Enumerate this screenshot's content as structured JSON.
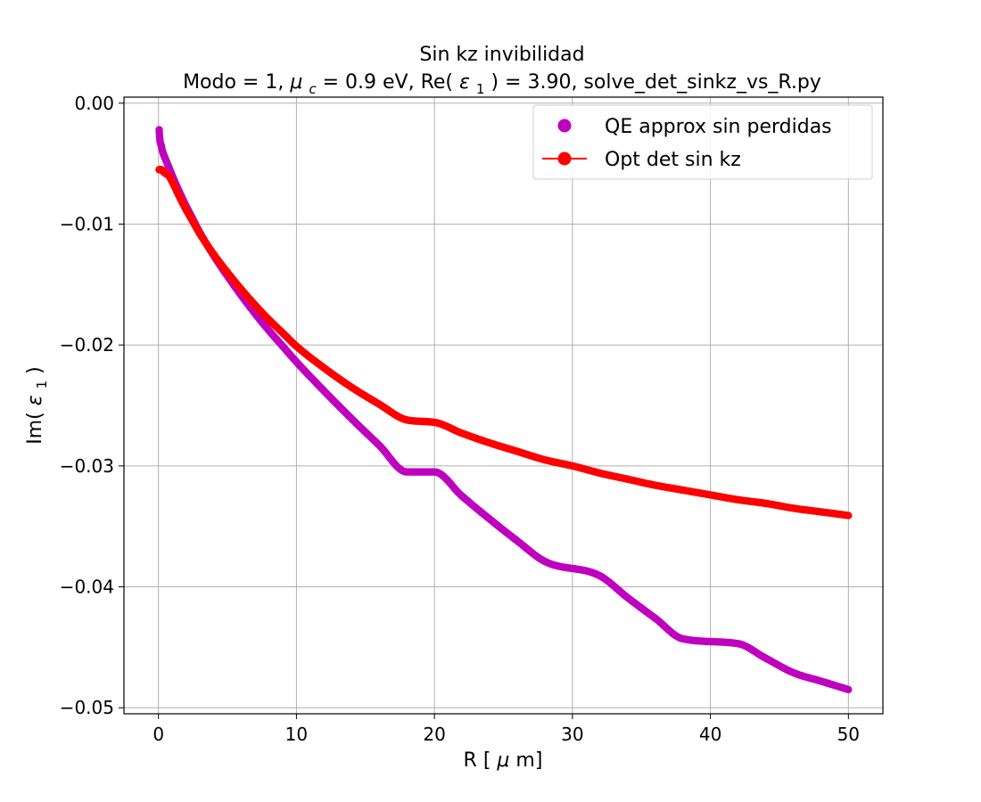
{
  "chart_data": {
    "type": "scatter",
    "title": "Sin kz invibilidad",
    "subtitle": "Modo = 1, μ_c = 0.9 eV, Re(ε_1) = 3.90, solve_det_sinkz_vs_R.py",
    "xlabel": "R [μm]",
    "ylabel": "Im(ε_1)",
    "xlim": [
      -2.5,
      52.5
    ],
    "ylim": [
      -0.0505,
      0.0005
    ],
    "xticks": [
      0,
      10,
      20,
      30,
      40,
      50
    ],
    "yticks": [
      0.0,
      -0.01,
      -0.02,
      -0.03,
      -0.04,
      -0.05
    ],
    "xtick_labels": [
      "0",
      "10",
      "20",
      "30",
      "40",
      "50"
    ],
    "ytick_labels": [
      "0.00",
      "−0.01",
      "−0.02",
      "−0.03",
      "−0.04",
      "−0.05"
    ],
    "grid": true,
    "legend_position": "top-right",
    "series": [
      {
        "name": "QE approx sin perdidas",
        "style": "markers",
        "color": "#bf00bf",
        "x": [
          0.05,
          0.1,
          0.2,
          0.3,
          0.5,
          0.75,
          1,
          1.5,
          2,
          2.5,
          3,
          4,
          5,
          6,
          7,
          8,
          9,
          10,
          12,
          14,
          16,
          18,
          20,
          22,
          24,
          26,
          28,
          30,
          32,
          34,
          36,
          38,
          40,
          42,
          44,
          46,
          48,
          50
        ],
        "y": [
          -0.0022,
          -0.003,
          -0.0035,
          -0.004,
          -0.0046,
          -0.0053,
          -0.006,
          -0.0073,
          -0.0085,
          -0.0096,
          -0.0107,
          -0.0126,
          -0.0143,
          -0.0159,
          -0.0174,
          -0.0188,
          -0.0201,
          -0.0214,
          -0.0238,
          -0.0261,
          -0.0283,
          -0.0305,
          -0.0305,
          -0.0325,
          -0.0344,
          -0.0362,
          -0.0379,
          -0.0372,
          -0.0391,
          -0.0409,
          -0.0426,
          -0.0443,
          -0.0435,
          -0.0447,
          -0.0459,
          -0.0471,
          -0.0478,
          -0.0485
        ]
      },
      {
        "name": "Opt det sin kz",
        "style": "line-markers",
        "color": "#ff0000",
        "x": [
          0.05,
          0.1,
          0.2,
          0.3,
          0.5,
          0.75,
          1,
          1.5,
          2,
          2.5,
          3,
          4,
          5,
          6,
          7,
          8,
          9,
          10,
          12,
          14,
          16,
          18,
          20,
          22,
          24,
          26,
          28,
          30,
          32,
          34,
          36,
          38,
          40,
          42,
          44,
          46,
          48,
          50
        ],
        "y": [
          -0.0055,
          -0.0055,
          -0.0055,
          -0.0056,
          -0.0058,
          -0.006,
          -0.0065,
          -0.0077,
          -0.0088,
          -0.0098,
          -0.0108,
          -0.0125,
          -0.014,
          -0.0154,
          -0.0167,
          -0.0179,
          -0.019,
          -0.0201,
          -0.0219,
          -0.0235,
          -0.0249,
          -0.0262,
          -0.0264,
          -0.0273,
          -0.0281,
          -0.0288,
          -0.0295,
          -0.03,
          -0.0306,
          -0.0311,
          -0.0316,
          -0.032,
          -0.0324,
          -0.0328,
          -0.0331,
          -0.0335,
          -0.0338,
          -0.0341
        ]
      }
    ]
  }
}
